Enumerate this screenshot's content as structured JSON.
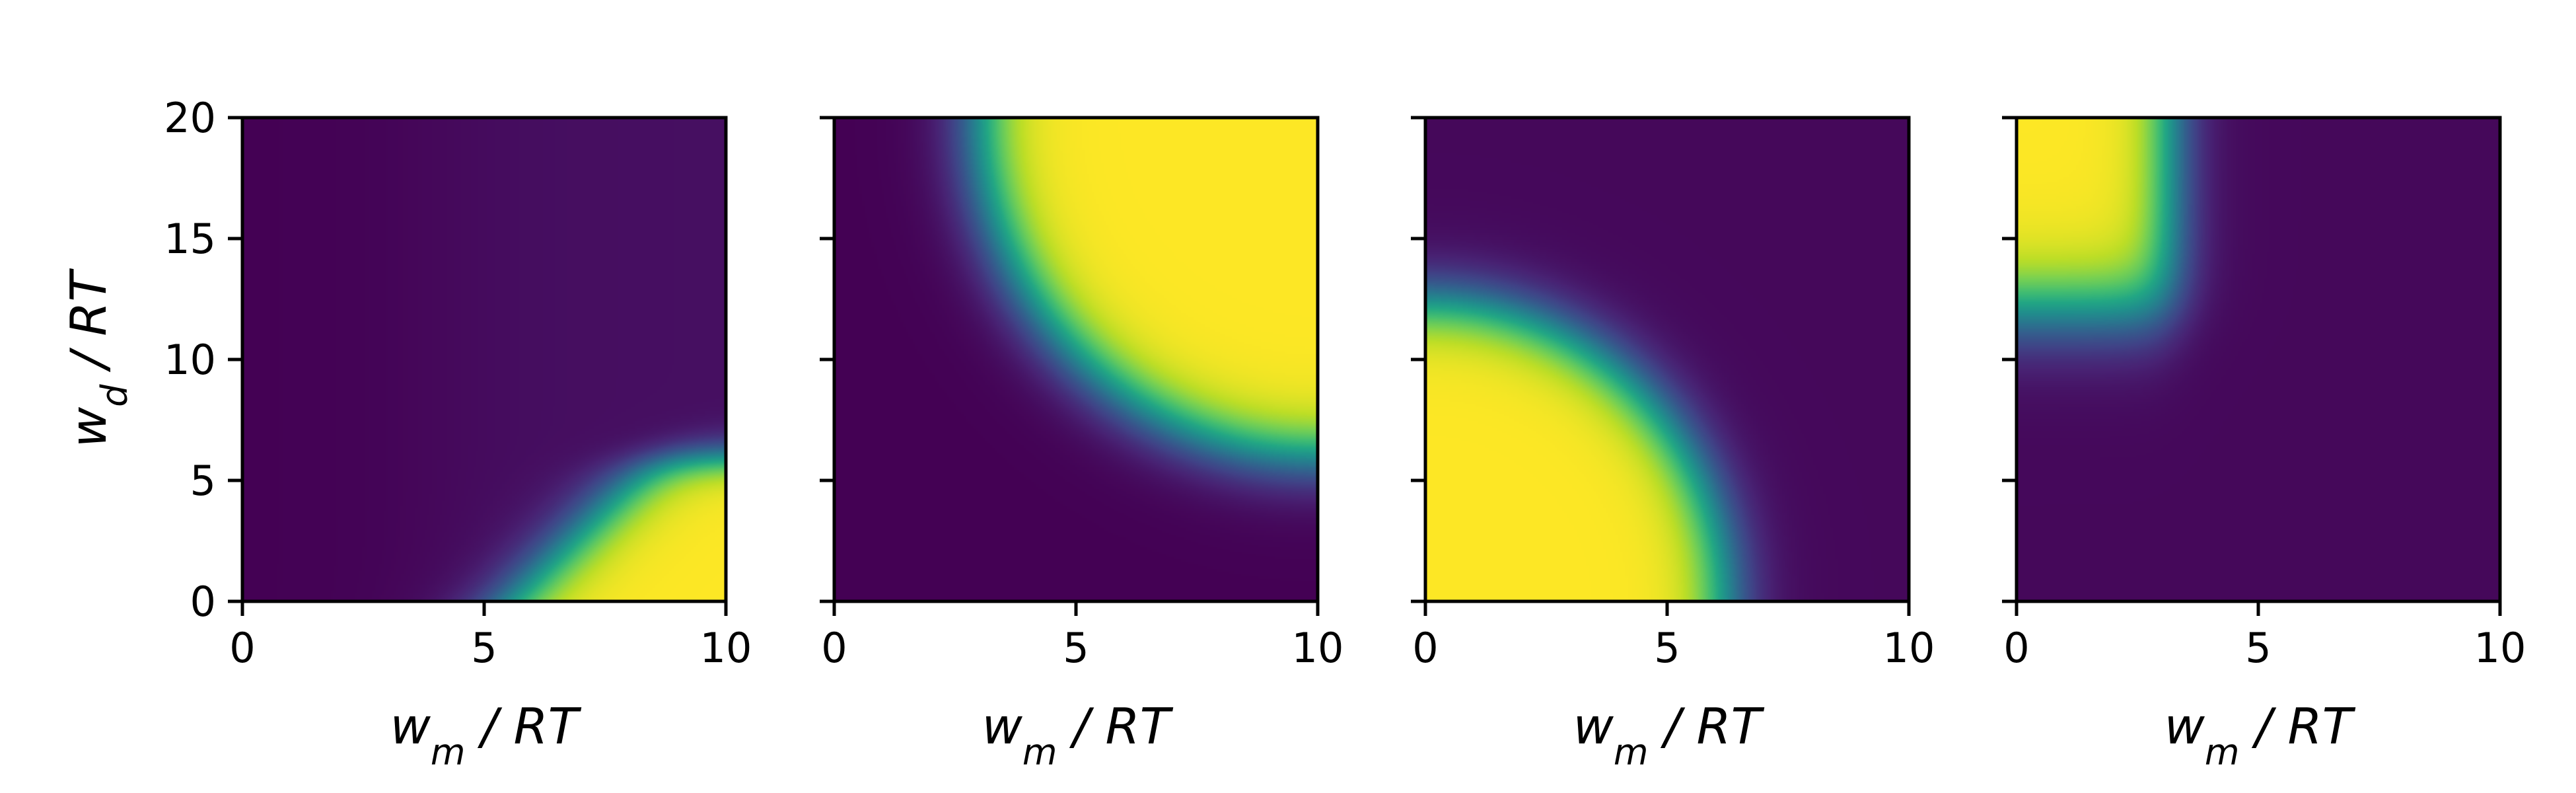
{
  "chart_data": [
    {
      "type": "heatmap",
      "panel": 1,
      "xlabel": "w_m / RT",
      "ylabel": "w_d / RT",
      "xlim": [
        0,
        10
      ],
      "ylim": [
        0,
        20
      ],
      "xticks": [
        0,
        5,
        10
      ],
      "yticks": [
        0,
        5,
        10,
        15,
        20
      ],
      "colormap": "viridis",
      "value_range": [
        0,
        1
      ],
      "description": "high values concentrated at large w_m and small w_d",
      "peak": {
        "x": 10,
        "y": 0,
        "value": 0.95
      }
    },
    {
      "type": "heatmap",
      "panel": 2,
      "xlabel": "w_m / RT",
      "xlim": [
        0,
        10
      ],
      "ylim": [
        0,
        20
      ],
      "xticks": [
        0,
        5,
        10
      ],
      "yticks": [
        0,
        5,
        10,
        15,
        20
      ],
      "colormap": "viridis",
      "value_range": [
        0,
        1
      ],
      "description": "high values for large w_m and large w_d, bounded by a curved front",
      "peak": {
        "x": 10,
        "y": 20,
        "value": 1.0
      }
    },
    {
      "type": "heatmap",
      "panel": 3,
      "xlabel": "w_m / RT",
      "xlim": [
        0,
        10
      ],
      "ylim": [
        0,
        20
      ],
      "xticks": [
        0,
        5,
        10
      ],
      "yticks": [
        0,
        5,
        10,
        15,
        20
      ],
      "colormap": "viridis",
      "value_range": [
        0,
        1
      ],
      "description": "high values for small w_m and small w_d, bounded by a curved front",
      "peak": {
        "x": 0,
        "y": 0,
        "value": 1.0
      }
    },
    {
      "type": "heatmap",
      "panel": 4,
      "xlabel": "w_m / RT",
      "xlim": [
        0,
        10
      ],
      "ylim": [
        0,
        20
      ],
      "xticks": [
        0,
        5,
        10
      ],
      "yticks": [
        0,
        5,
        10,
        15,
        20
      ],
      "colormap": "viridis",
      "value_range": [
        0,
        1
      ],
      "description": "high values for small w_m and large w_d",
      "peak": {
        "x": 0,
        "y": 20,
        "value": 1.0
      }
    }
  ]
}
